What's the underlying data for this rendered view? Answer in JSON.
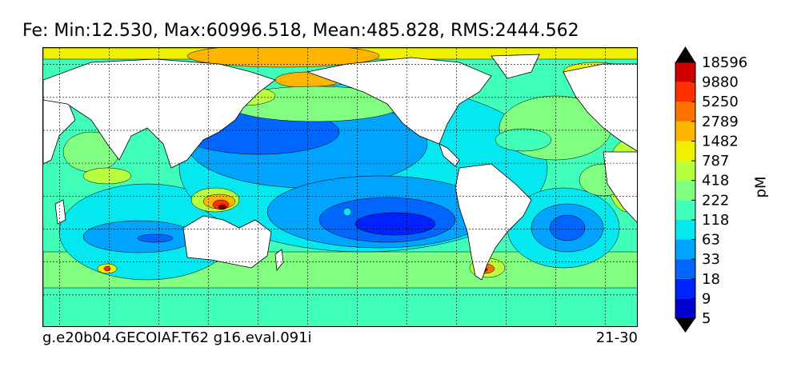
{
  "title": "Fe: Min:12.530, Max:60996.518, Mean:485.828, RMS:2444.562",
  "footer": {
    "left": "g.e20b04.GECOIAF.T62 g16.eval.091i",
    "right": "21-30"
  },
  "chart_data": {
    "type": "heatmap",
    "variable": "Fe",
    "stats": {
      "min": 12.53,
      "max": 60996.518,
      "mean": 485.828,
      "rms": 2444.562
    },
    "colorbar": {
      "unit": "pM",
      "levels": [
        5,
        9,
        18,
        33,
        63,
        118,
        222,
        418,
        787,
        1482,
        2789,
        5250,
        9880,
        18596
      ],
      "colors": [
        "#00007f",
        "#0000d0",
        "#0022ff",
        "#0066ff",
        "#00a4ff",
        "#05e8f0",
        "#40ffb8",
        "#80ff80",
        "#b8ff40",
        "#f0f000",
        "#ffb400",
        "#ff7200",
        "#ff3000",
        "#d00000",
        "#7f0000"
      ],
      "extend": "both"
    },
    "grid": true,
    "projection": "cylindrical global map",
    "lon_range": [
      20,
      380
    ],
    "lat_range": [
      -80,
      90
    ]
  }
}
